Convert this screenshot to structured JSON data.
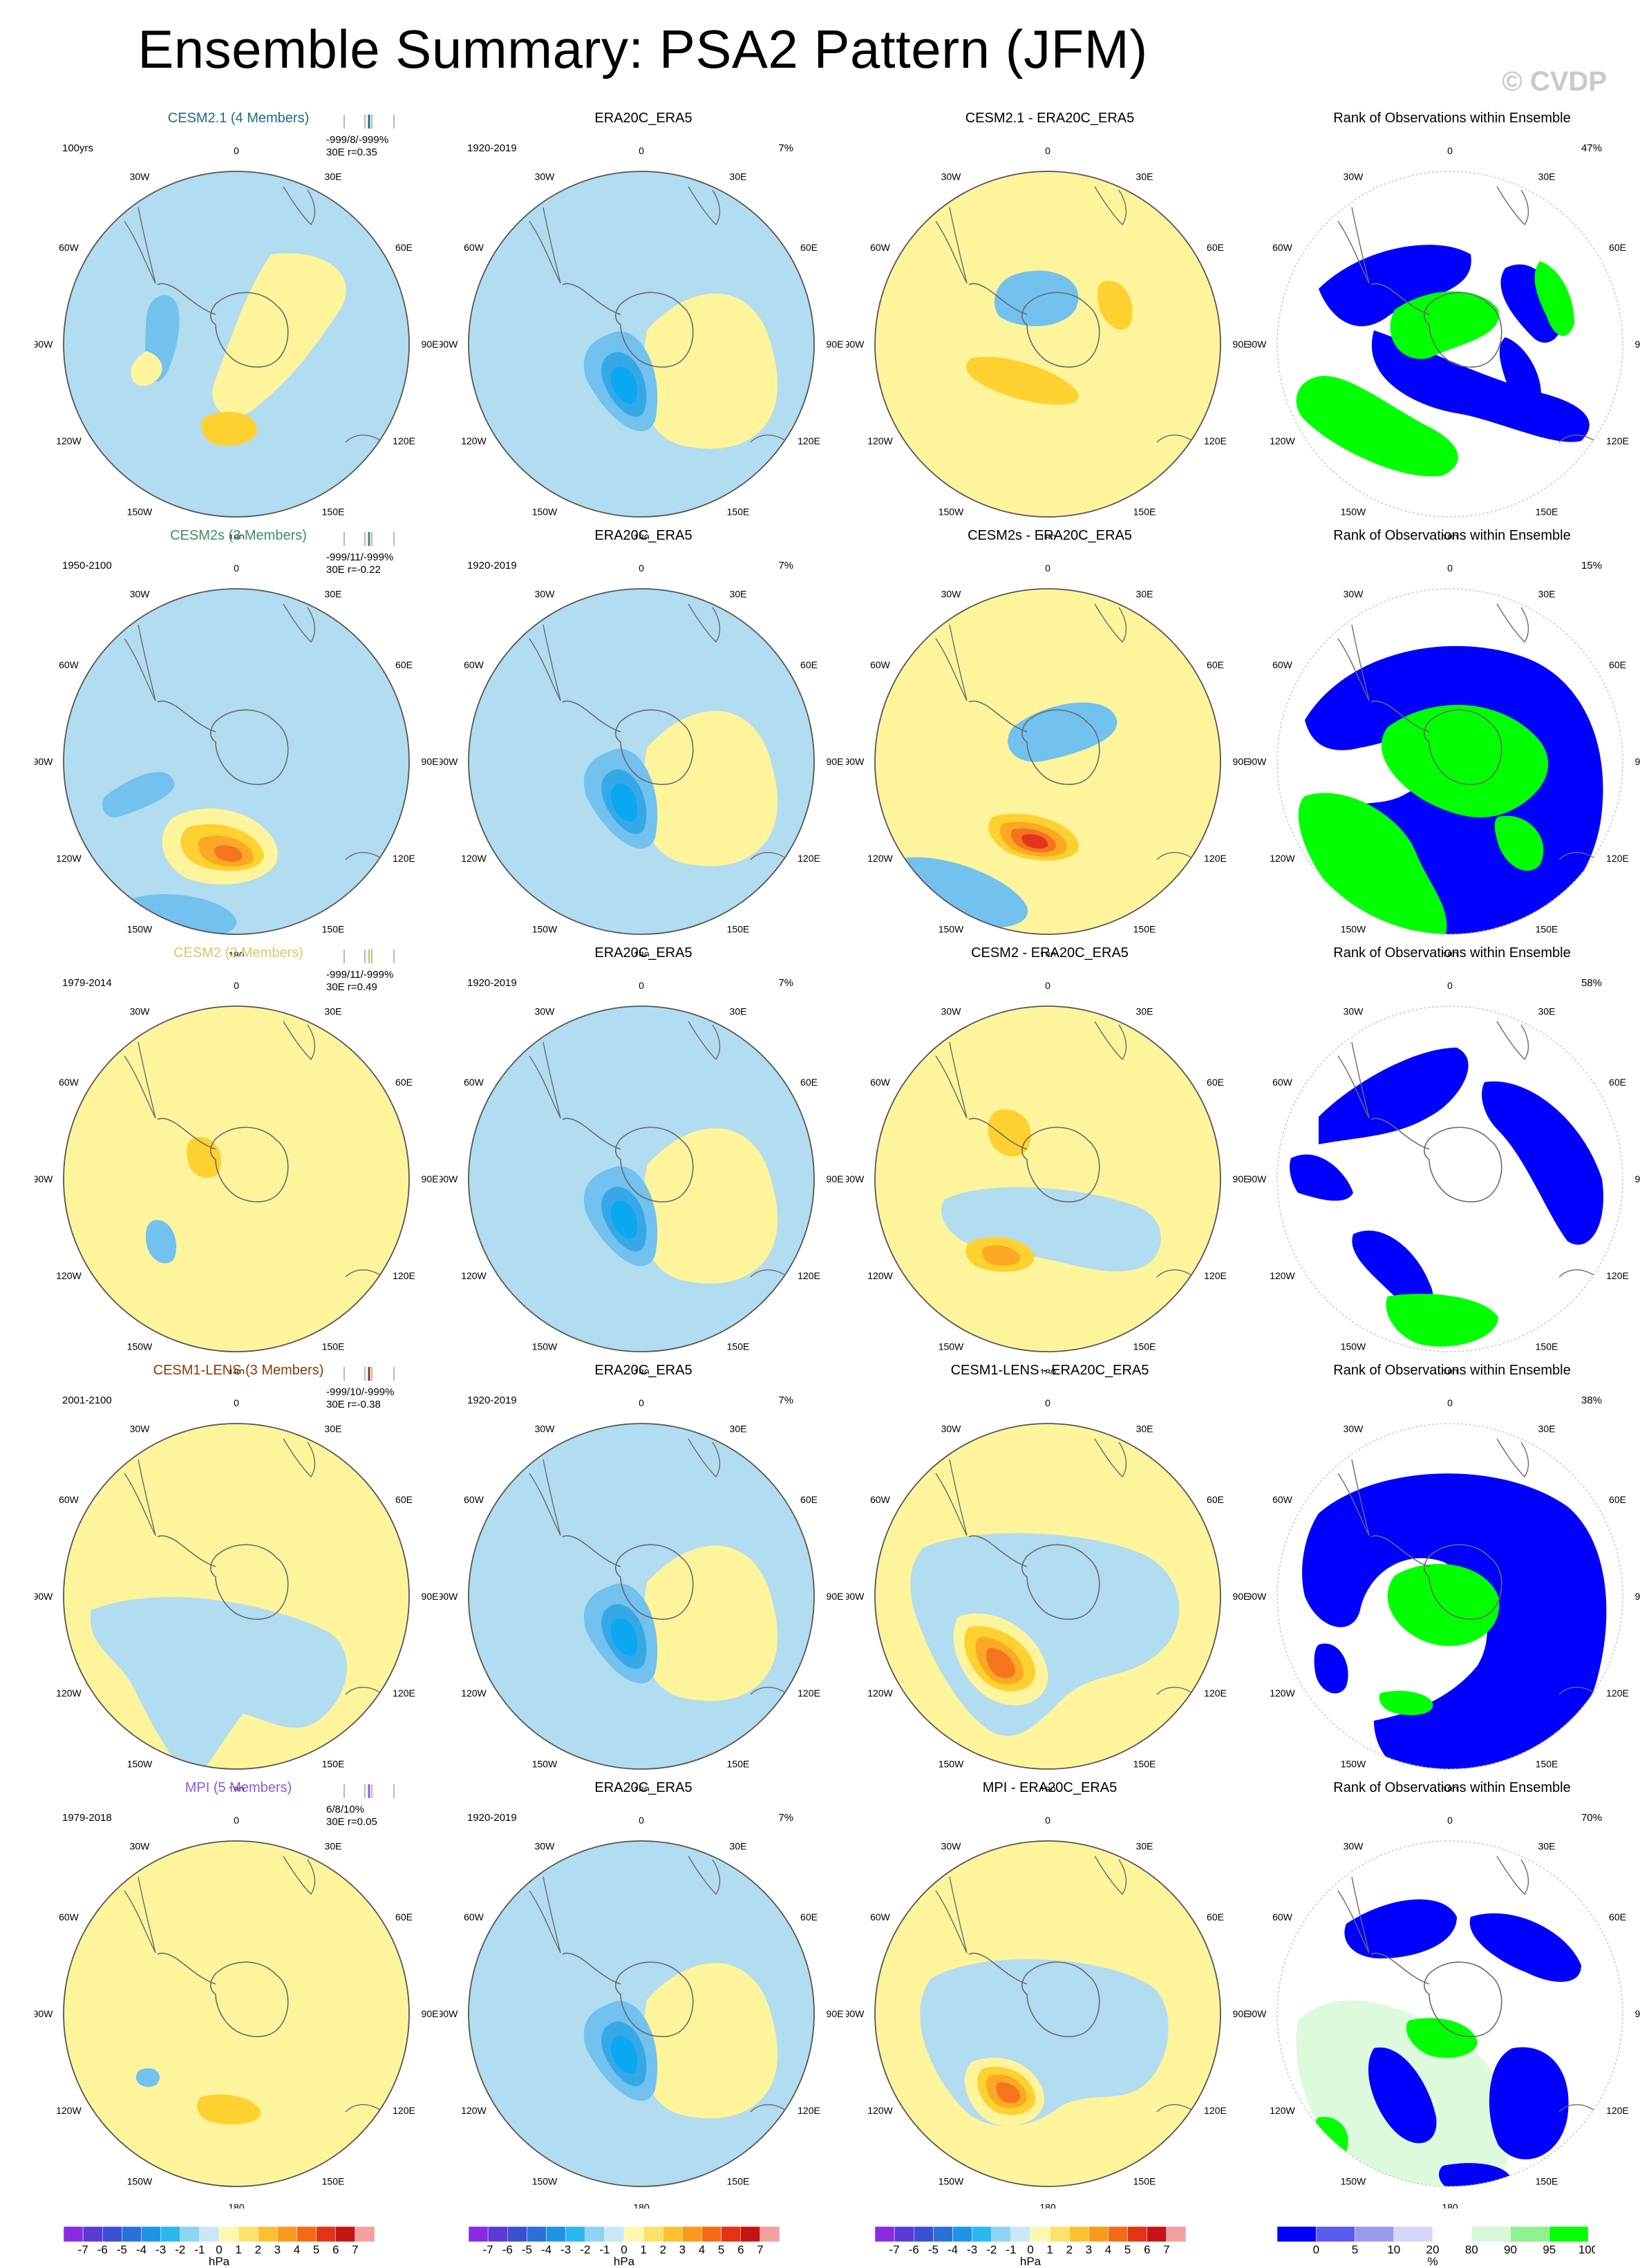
{
  "title": "Ensemble Summary: PSA2 Pattern (JFM)",
  "watermark": "© CVDP",
  "colors": {
    "light_blue": "#b2dcef",
    "blue1": "#72c1ee",
    "blue2": "#36a8e8",
    "blue3": "#0aa8f0",
    "yellow1": "#fdf49c",
    "yellow2": "#fdd230",
    "orange1": "#fba824",
    "orange2": "#f5741e",
    "red1": "#e2361c",
    "rank_blue": "#0000ff",
    "rank_green": "#00ff00",
    "rank_light_green": "#ddfadd"
  },
  "longitude_labels": [
    "0",
    "30E",
    "60E",
    "90E",
    "120E",
    "150E",
    "180",
    "150W",
    "120W",
    "90W",
    "60W",
    "30W"
  ],
  "columns": [
    "model",
    "observation",
    "difference",
    "rank"
  ],
  "rows": [
    {
      "model": {
        "title": "CESM2.1 (4 Members)",
        "title_color": "#1e6a8a",
        "period": "100yrs",
        "stats_line1": "-999/8/-999%",
        "stats_line2": "30E  r=0.35"
      },
      "obs": {
        "title": "ERA20C_ERA5",
        "period": "1920-2019",
        "pct": "7%"
      },
      "diff": {
        "title": "CESM2.1 - ERA20C_ERA5"
      },
      "rank": {
        "title": "Rank of Observations within Ensemble",
        "pct": "47%"
      }
    },
    {
      "model": {
        "title": "CESM2s (3 Members)",
        "title_color": "#3e8e5a",
        "period": "1950-2100",
        "stats_line1": "-999/11/-999%",
        "stats_line2": "30E  r=-0.22"
      },
      "obs": {
        "title": "ERA20C_ERA5",
        "period": "1920-2019",
        "pct": "7%"
      },
      "diff": {
        "title": "CESM2s - ERA20C_ERA5"
      },
      "rank": {
        "title": "Rank of Observations within Ensemble",
        "pct": "15%"
      }
    },
    {
      "model": {
        "title": "CESM2 (2 Members)",
        "title_color": "#d9c86a",
        "period": "1979-2014",
        "stats_line1": "-999/11/-999%",
        "stats_line2": "30E  r=0.49"
      },
      "obs": {
        "title": "ERA20C_ERA5",
        "period": "1920-2019",
        "pct": "7%"
      },
      "diff": {
        "title": "CESM2 - ERA20C_ERA5"
      },
      "rank": {
        "title": "Rank of Observations within Ensemble",
        "pct": "58%"
      }
    },
    {
      "model": {
        "title": "CESM1-LENS (3 Members)",
        "title_color": "#8a3a0a",
        "period": "2001-2100",
        "stats_line1": "-999/10/-999%",
        "stats_line2": "30E  r=-0.38"
      },
      "obs": {
        "title": "ERA20C_ERA5",
        "period": "1920-2019",
        "pct": "7%"
      },
      "diff": {
        "title": "CESM1-LENS - ERA20C_ERA5"
      },
      "rank": {
        "title": "Rank of Observations within Ensemble",
        "pct": "38%"
      }
    },
    {
      "model": {
        "title": "MPI (5 Members)",
        "title_color": "#8a5ae0",
        "period": "1979-2018",
        "stats_line1": "6/8/10%",
        "stats_line2": "30E  r=0.05"
      },
      "obs": {
        "title": "ERA20C_ERA5",
        "period": "1920-2019",
        "pct": "7%"
      },
      "diff": {
        "title": "MPI - ERA20C_ERA5"
      },
      "rank": {
        "title": "Rank of Observations within Ensemble",
        "pct": "70%"
      }
    }
  ],
  "colorbar_hpa": {
    "unit": "hPa",
    "labels": [
      "-7",
      "-6",
      "-5",
      "-4",
      "-3",
      "-2",
      "-1",
      "0",
      "1",
      "2",
      "3",
      "4",
      "5",
      "6",
      "7"
    ],
    "colors": [
      "#8a2be2",
      "#5a3ad6",
      "#3a4fd2",
      "#2a70d8",
      "#1e94e6",
      "#2ab8f0",
      "#8fd3f2",
      "#c8e8f6",
      "#fff7b0",
      "#fde26a",
      "#fdc030",
      "#fa9a1c",
      "#f46a14",
      "#e23414",
      "#c41414",
      "#f4a0a0"
    ]
  },
  "colorbar_rank": {
    "unit": "%",
    "labels": [
      "0",
      "5",
      "10",
      "20",
      "80",
      "90",
      "95",
      "100"
    ],
    "colors": [
      "#0000ff",
      "#5a5af0",
      "#9a9af0",
      "#d6d6f8",
      "#ffffff",
      "#d6f8d6",
      "#8ef08e",
      "#00ff00"
    ]
  }
}
